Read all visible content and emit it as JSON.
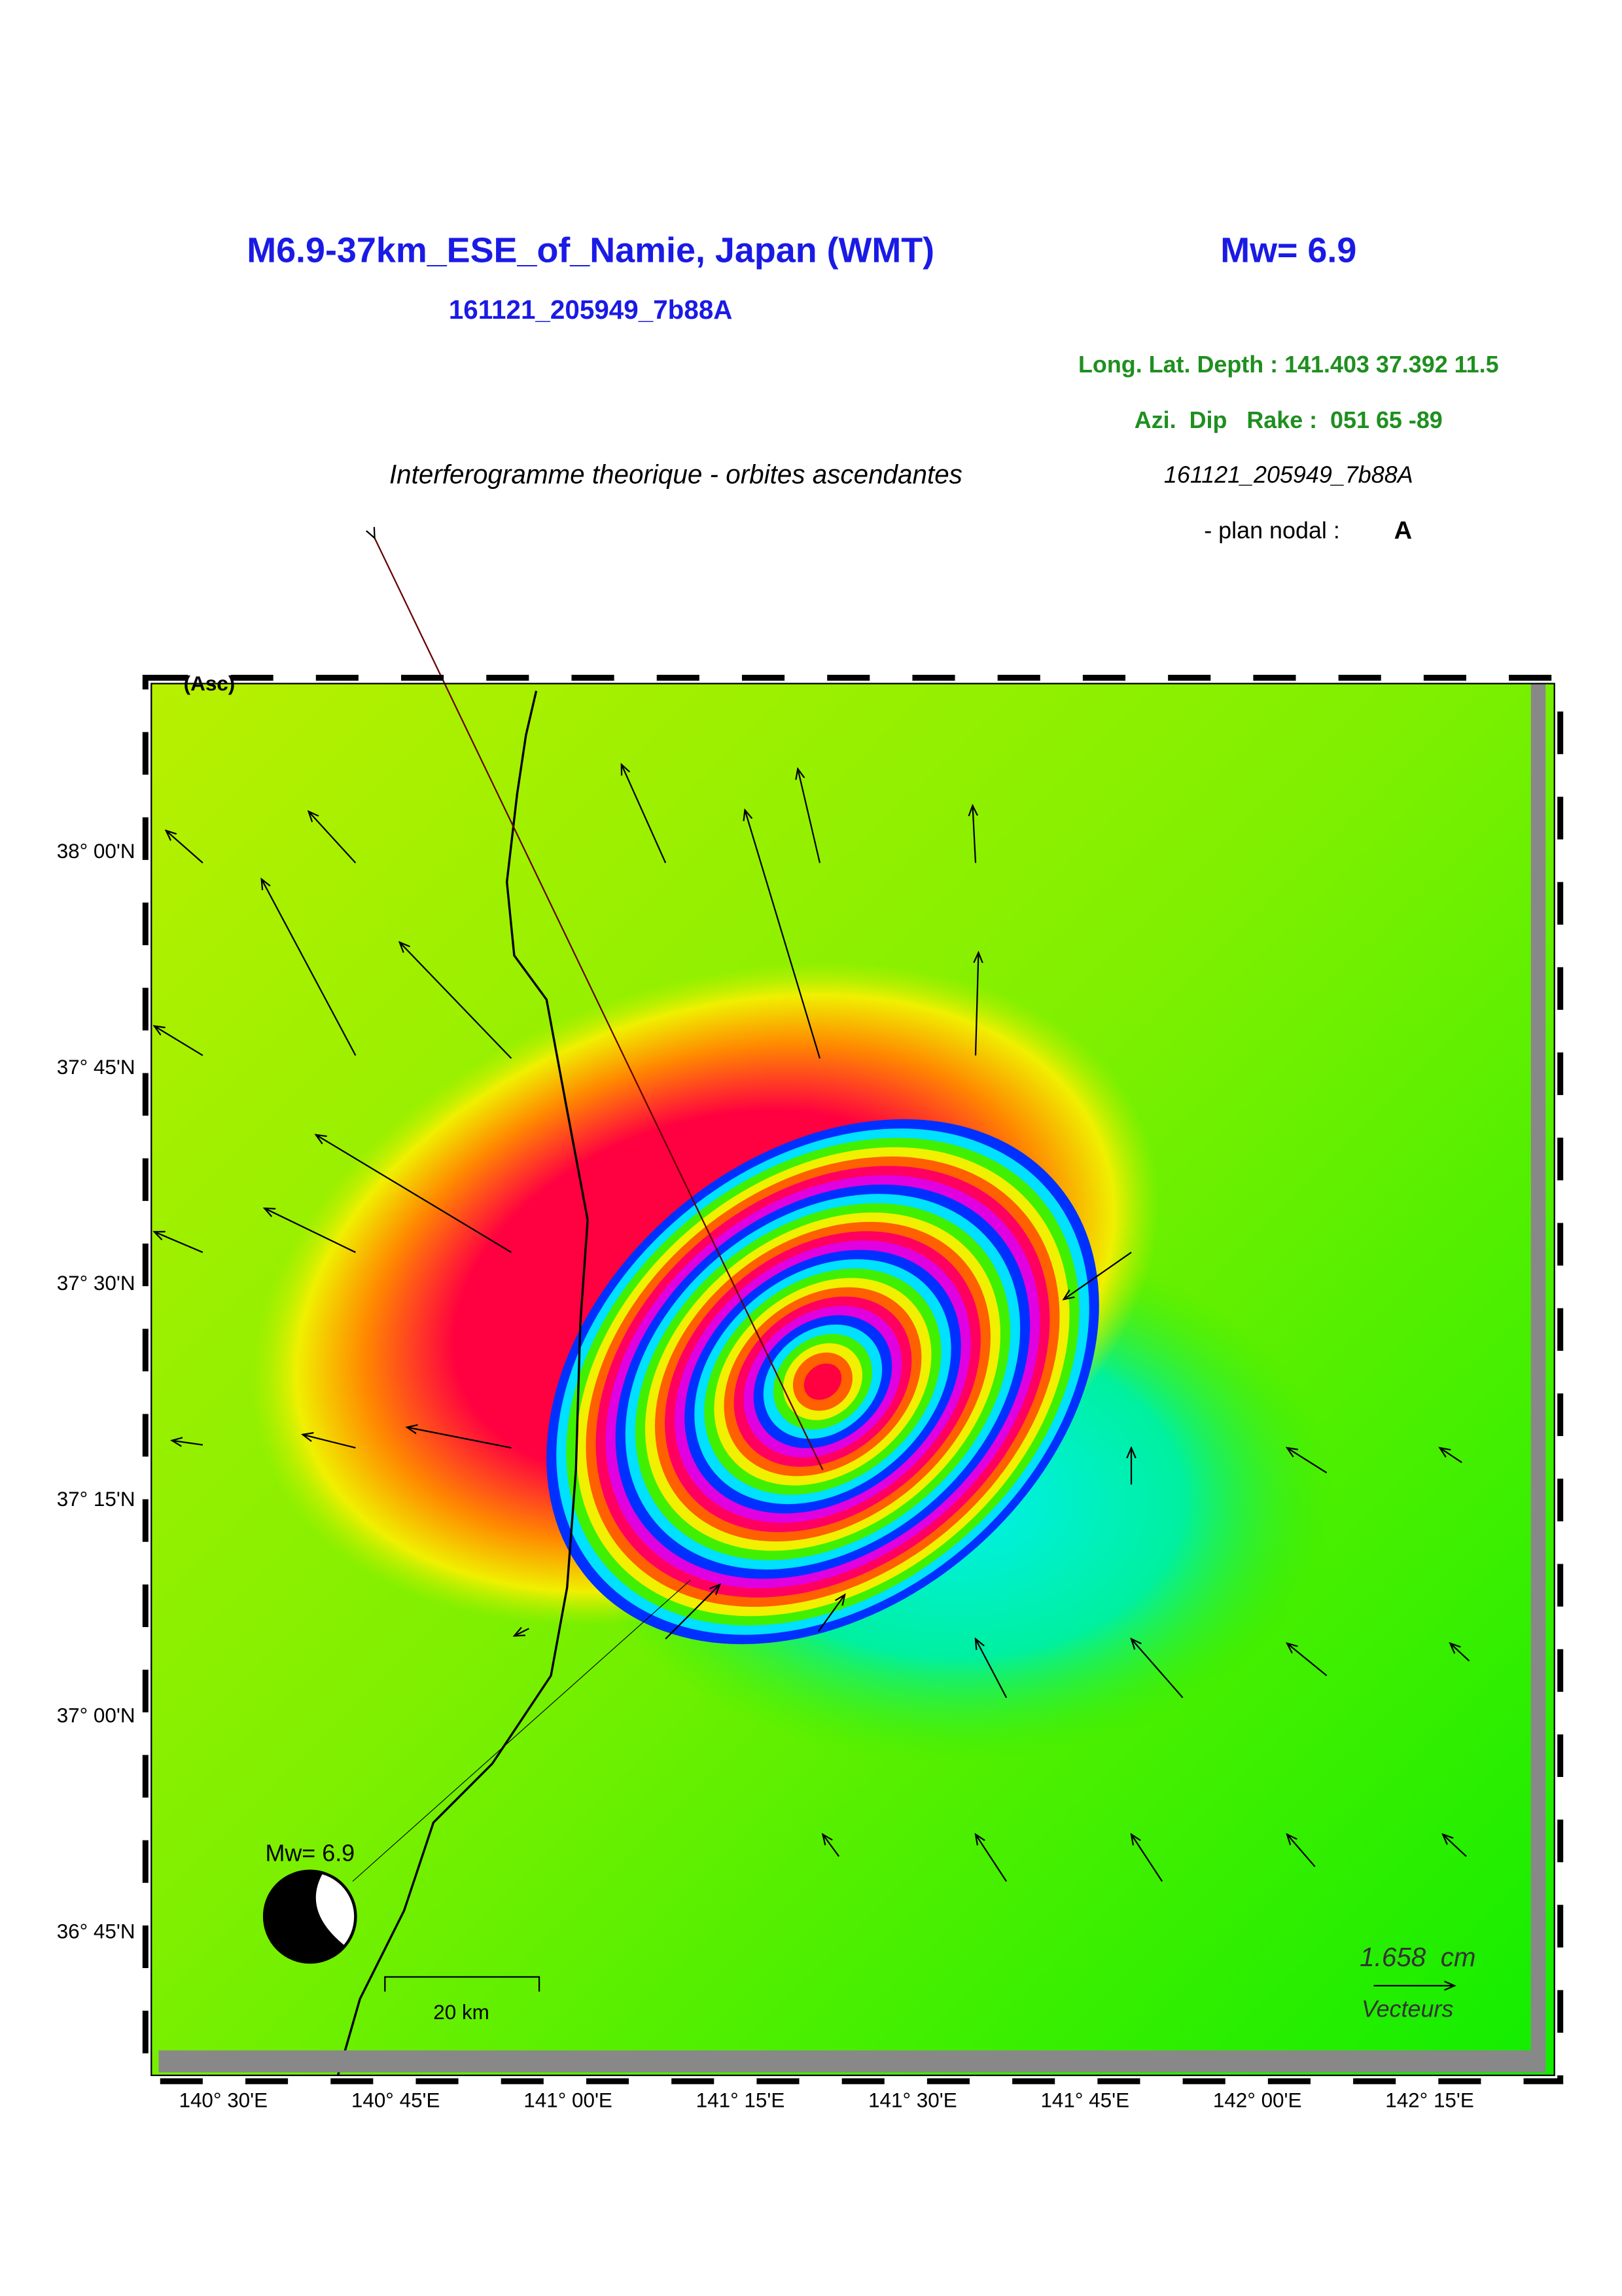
{
  "header": {
    "title": "M6.9-37km_ESE_of_Namie, Japan (WMT)",
    "magnitude": "Mw= 6.9",
    "event_id": "161121_205949_7b88A"
  },
  "parameters": {
    "location": "Long. Lat. Depth : 141.403 37.392 11.5",
    "mechanism": "Azi.  Dip   Rake :  051 65 -89"
  },
  "subtitle": "Interferogramme theorique - orbites ascendantes",
  "event_id_2": "161121_205949_7b88A",
  "plan_nodal": {
    "label": "- plan nodal :",
    "value": "A"
  },
  "map": {
    "orbit": "(Asc)",
    "lat_labels": [
      "38° 00'N",
      "37° 45'N",
      "37° 30'N",
      "37° 15'N",
      "37° 00'N",
      "36° 45'N"
    ],
    "lon_labels": [
      "140° 30'E",
      "140° 45'E",
      "141° 00'E",
      "141° 15'E",
      "141° 30'E",
      "141° 45'E",
      "142° 00'E",
      "142° 15'E"
    ],
    "beachball_label": "Mw= 6.9",
    "scale_label": "20 km",
    "vector_scale": "1.658  cm",
    "vector_label": "Vecteurs"
  }
}
